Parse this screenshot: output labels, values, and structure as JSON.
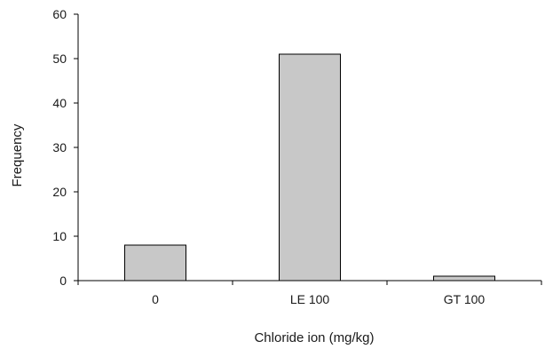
{
  "chart_data": {
    "type": "bar",
    "categories": [
      "0",
      "LE 100",
      "GT 100"
    ],
    "values": [
      8,
      51,
      1
    ],
    "title": "",
    "xlabel": "Chloride ion (mg/kg)",
    "ylabel": "Frequency",
    "ylim": [
      0,
      60
    ],
    "yticks": [
      "0",
      "10",
      "20",
      "30",
      "40",
      "50",
      "60"
    ],
    "grid": false,
    "legend": "none",
    "colors": {
      "bar_fill": "#c8c8c8",
      "bar_stroke": "#000000",
      "axis": "#000000"
    }
  }
}
